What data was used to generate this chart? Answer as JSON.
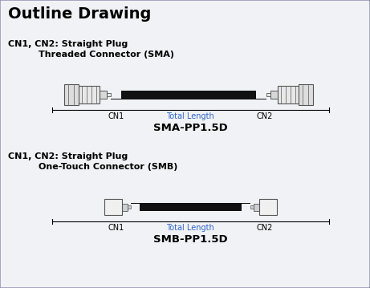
{
  "title": "Outline Drawing",
  "bg_color": "#f0f2f5",
  "border_color": "#9999bb",
  "text_color": "#000000",
  "blue_color": "#3366cc",
  "label1_line1": "CN1, CN2: Straight Plug",
  "label1_line2": "Threaded Connector (SMA)",
  "label2_line1": "CN1, CN2: Straight Plug",
  "label2_line2": "One-Touch Connector (SMB)",
  "model1": "SMA-PP1.5D",
  "model2": "SMB-PP1.5D",
  "total_length_label": "Total Length",
  "cn1_label": "CN1",
  "cn2_label": "CN2",
  "connector_body_color": "#e8e8e8",
  "connector_outline": "#555555",
  "cable_color": "#111111"
}
